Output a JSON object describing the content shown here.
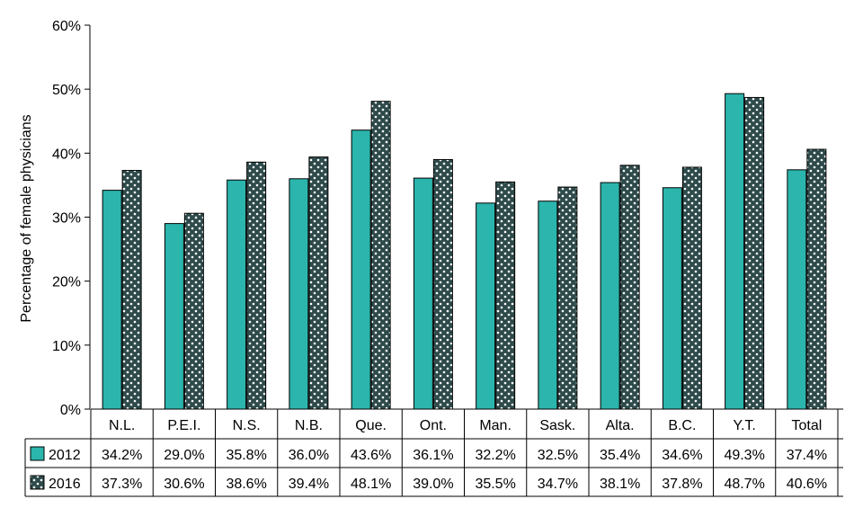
{
  "chart_data": {
    "type": "bar",
    "title": "",
    "xlabel": "",
    "ylabel": "Percentage of female physicians",
    "ylim": [
      0,
      60
    ],
    "y_ticks": [
      "0%",
      "10%",
      "20%",
      "30%",
      "40%",
      "50%",
      "60%"
    ],
    "categories": [
      "N.L.",
      "P.E.I.",
      "N.S.",
      "N.B.",
      "Que.",
      "Ont.",
      "Man.",
      "Sask.",
      "Alta.",
      "B.C.",
      "Y.T.",
      "Total"
    ],
    "series": [
      {
        "name": "2012",
        "color": "#2bb5ac",
        "pattern": "solid",
        "values": [
          34.2,
          29.0,
          35.8,
          36.0,
          43.6,
          36.1,
          32.2,
          32.5,
          35.4,
          34.6,
          49.3,
          37.4
        ],
        "labels": [
          "34.2%",
          "29.0%",
          "35.8%",
          "36.0%",
          "43.6%",
          "36.1%",
          "32.2%",
          "32.5%",
          "35.4%",
          "34.6%",
          "49.3%",
          "37.4%"
        ]
      },
      {
        "name": "2016",
        "color": "#2e4a4a",
        "pattern": "dotted",
        "values": [
          37.3,
          30.6,
          38.6,
          39.4,
          48.1,
          39.0,
          35.5,
          34.7,
          38.1,
          37.8,
          48.7,
          40.6
        ],
        "labels": [
          "37.3%",
          "30.6%",
          "38.6%",
          "39.4%",
          "48.1%",
          "39.0%",
          "35.5%",
          "34.7%",
          "38.1%",
          "37.8%",
          "48.7%",
          "40.6%"
        ]
      }
    ],
    "grid": false,
    "legend": "data-table"
  }
}
